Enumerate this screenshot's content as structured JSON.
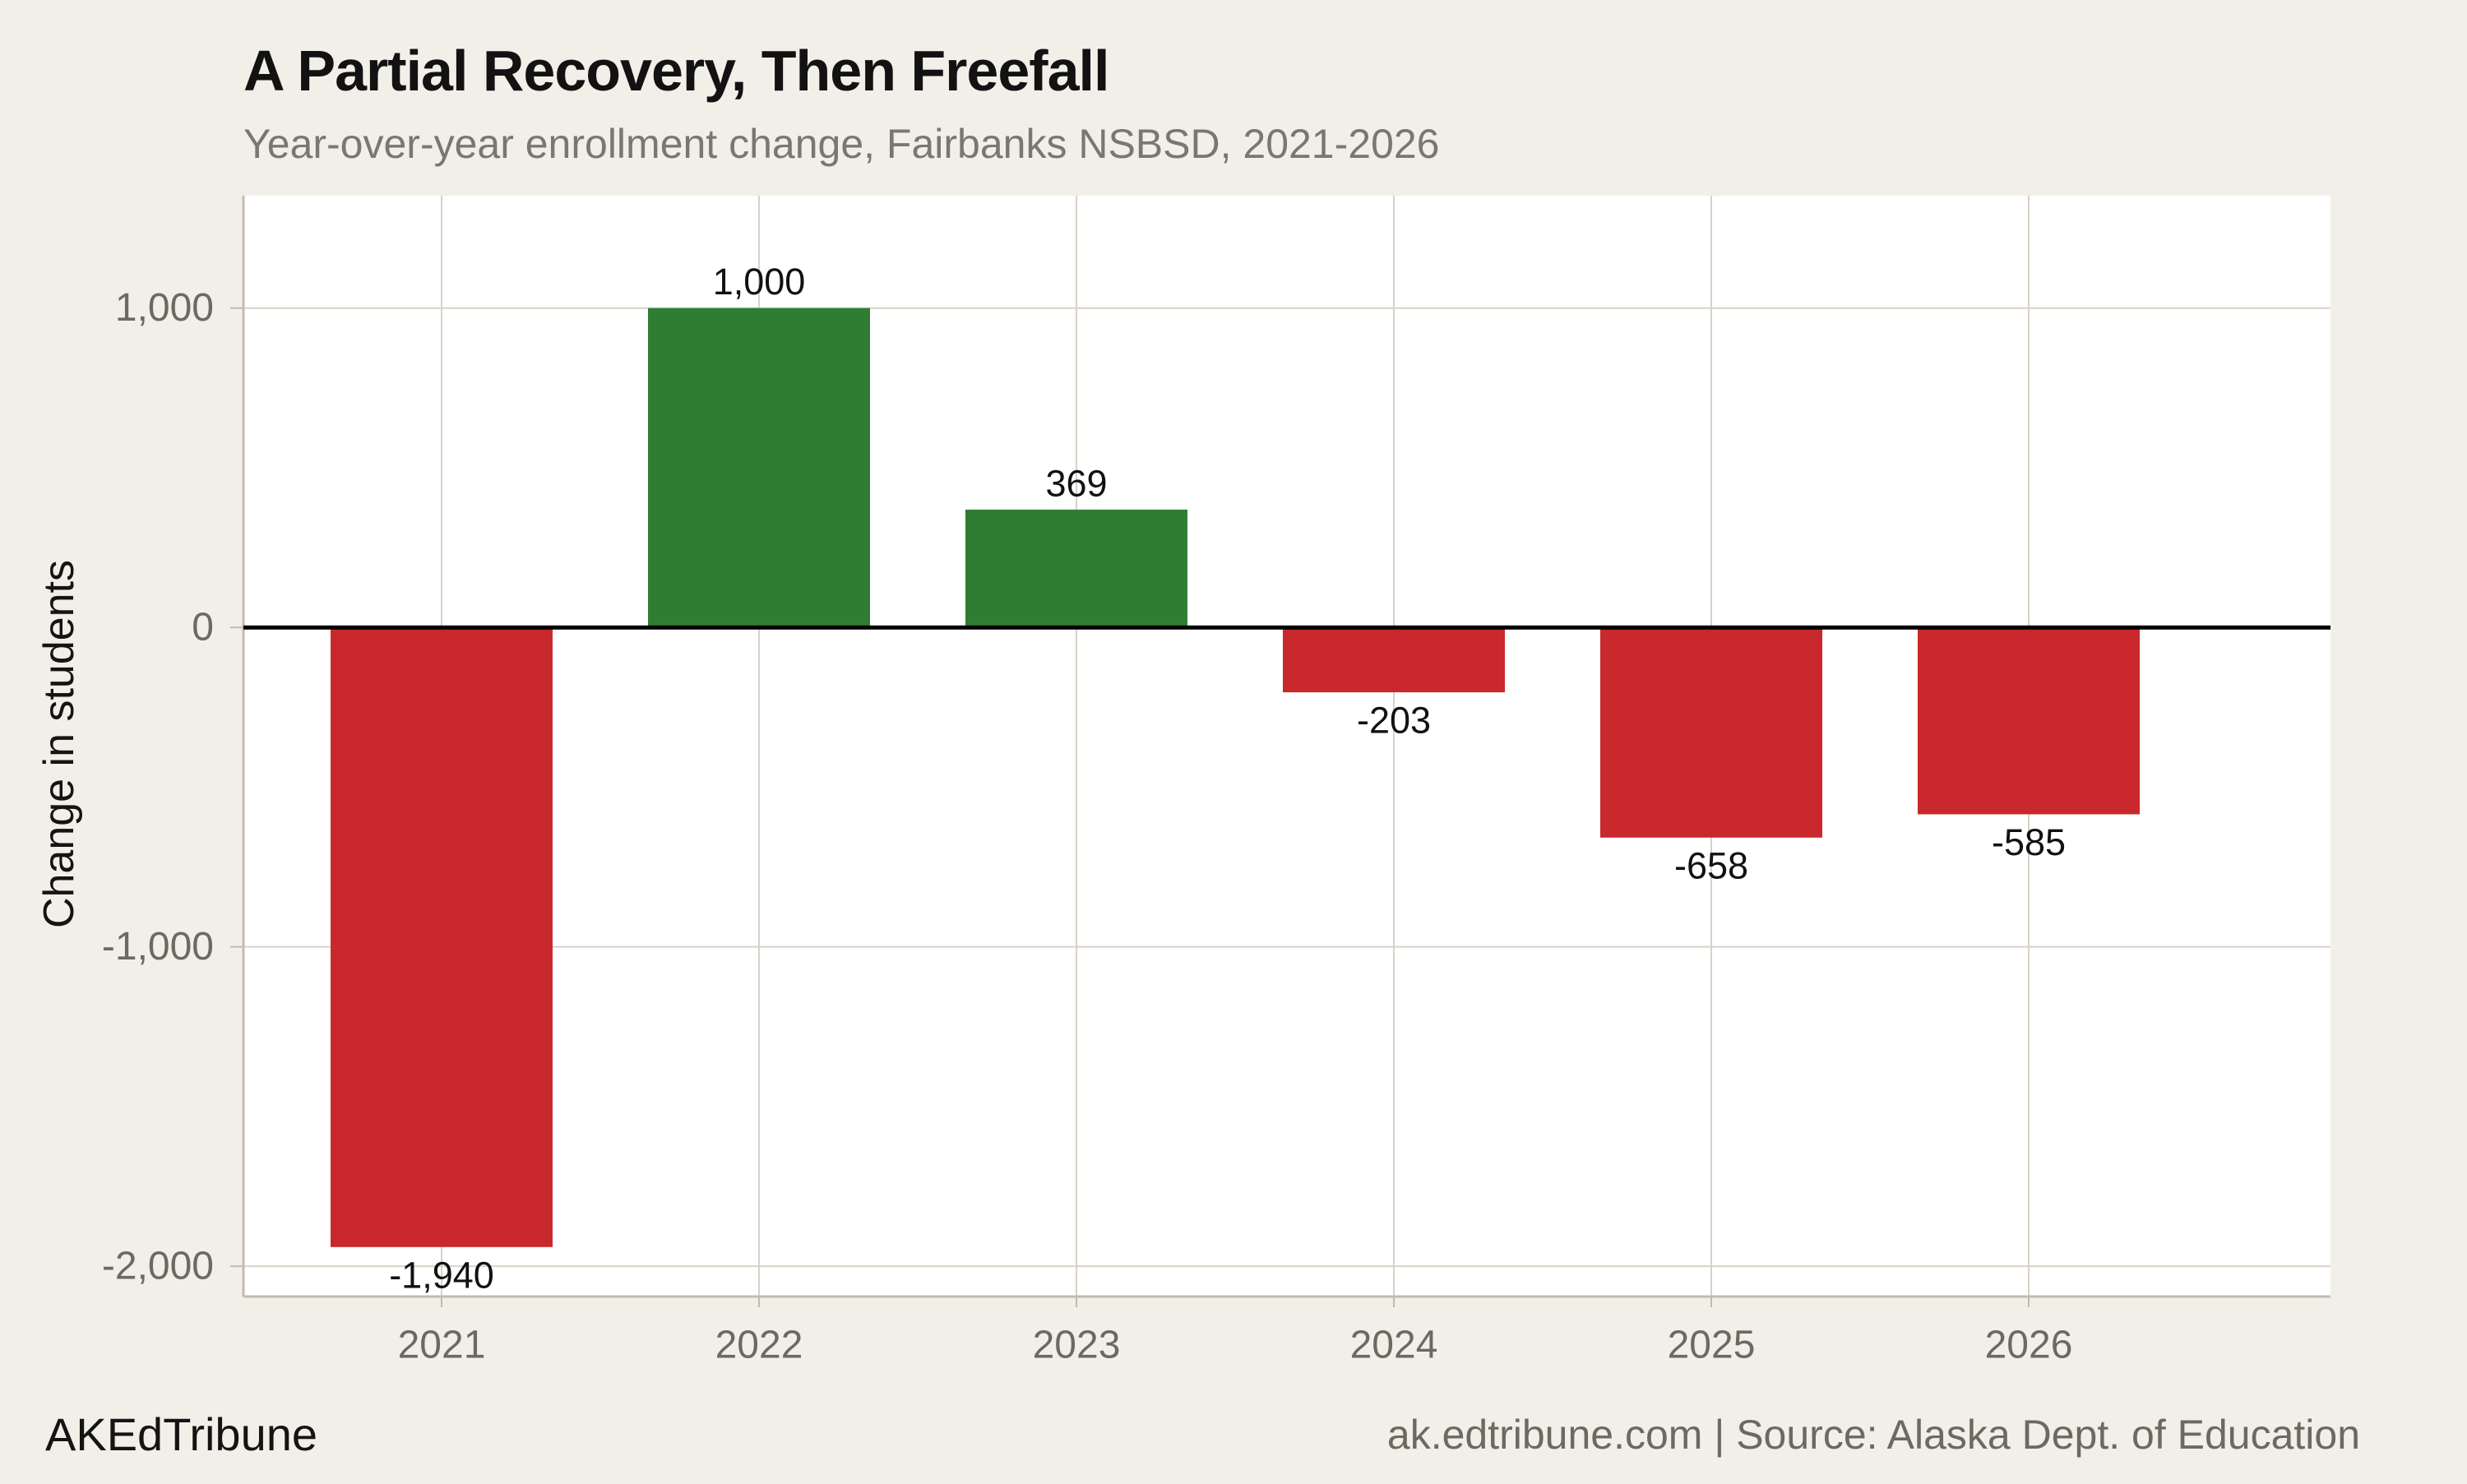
{
  "page": {
    "background": "#f2efe9"
  },
  "header": {
    "title": "A Partial Recovery, Then Freefall",
    "subtitle": "Year-over-year enrollment change, Fairbanks NSBSD, 2021-2026"
  },
  "footer": {
    "brand": "AKEdTribune",
    "source_line": "ak.edtribune.com | Source: Alaska Dept. of Education"
  },
  "chart_data": {
    "type": "bar",
    "title": "A Partial Recovery, Then Freefall",
    "subtitle": "Year-over-year enrollment change, Fairbanks NSBSD, 2021-2026",
    "xlabel": "",
    "ylabel": "Change in students",
    "categories": [
      "2021",
      "2022",
      "2023",
      "2024",
      "2025",
      "2026"
    ],
    "values": [
      -1940,
      1000,
      369,
      -203,
      -658,
      -585
    ],
    "value_labels": [
      "-1,940",
      "1,000",
      "369",
      "-203",
      "-658",
      "-585"
    ],
    "yticks": {
      "values": [
        1000,
        0,
        -1000,
        -2000
      ],
      "labels": [
        "1,000",
        "0",
        "-1,000",
        "-2,000"
      ]
    },
    "ylim": [
      -2095,
      1352
    ],
    "grid": "on",
    "legend": "none",
    "zero_line": true,
    "colors": {
      "positive_bar": "#2e7d33",
      "negative_bar": "#c9282c",
      "zero_line": "#000000",
      "gridline": "#d8d2c6",
      "axis_line": "#c2bbae",
      "tick_label": "#6e6960",
      "value_label": "#111111",
      "plot_background": "#ffffff"
    }
  }
}
